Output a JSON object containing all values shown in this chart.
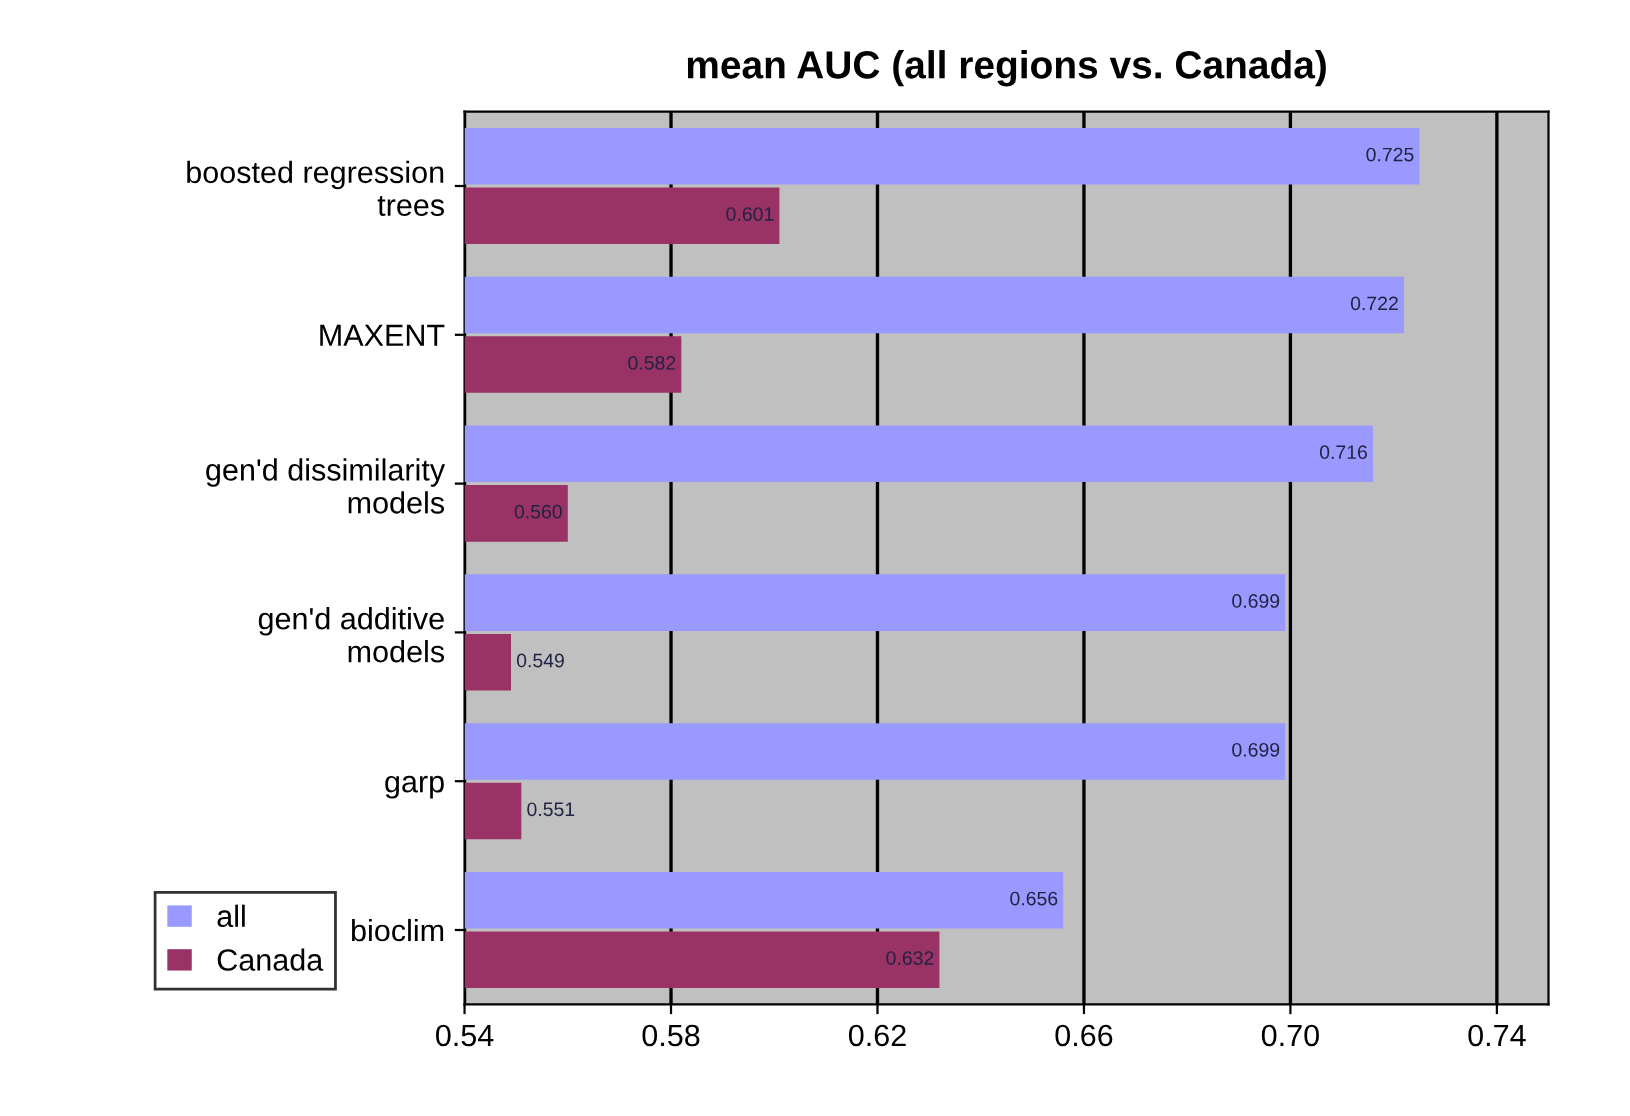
{
  "chart_data": {
    "type": "bar",
    "orientation": "horizontal",
    "title": "mean AUC (all regions vs. Canada)",
    "categories": [
      "boosted regression\ntrees",
      "MAXENT",
      "gen'd dissimilarity\nmodels",
      "gen'd additive\nmodels",
      "garp",
      "bioclim"
    ],
    "series": [
      {
        "name": "all",
        "color": "#9999ff",
        "values": [
          0.725,
          0.722,
          0.716,
          0.699,
          0.699,
          0.656
        ],
        "value_labels": [
          "0.725",
          "0.722",
          "0.716",
          "0.699",
          "0.699",
          "0.656"
        ]
      },
      {
        "name": "Canada",
        "color": "#993366",
        "values": [
          0.601,
          0.582,
          0.56,
          0.549,
          0.551,
          0.632
        ],
        "value_labels": [
          "0.601",
          "0.582",
          "0.560",
          "0.549",
          "0.551",
          "0.632"
        ]
      }
    ],
    "xlim": [
      0.54,
      0.75
    ],
    "xticks": [
      {
        "value": 0.54,
        "label": "0.54"
      },
      {
        "value": 0.58,
        "label": "0.58"
      },
      {
        "value": 0.62,
        "label": "0.62"
      },
      {
        "value": 0.66,
        "label": "0.66"
      },
      {
        "value": 0.7,
        "label": "0.70"
      },
      {
        "value": 0.74,
        "label": "0.74"
      }
    ],
    "grid": "x",
    "legend": "bottom left"
  }
}
